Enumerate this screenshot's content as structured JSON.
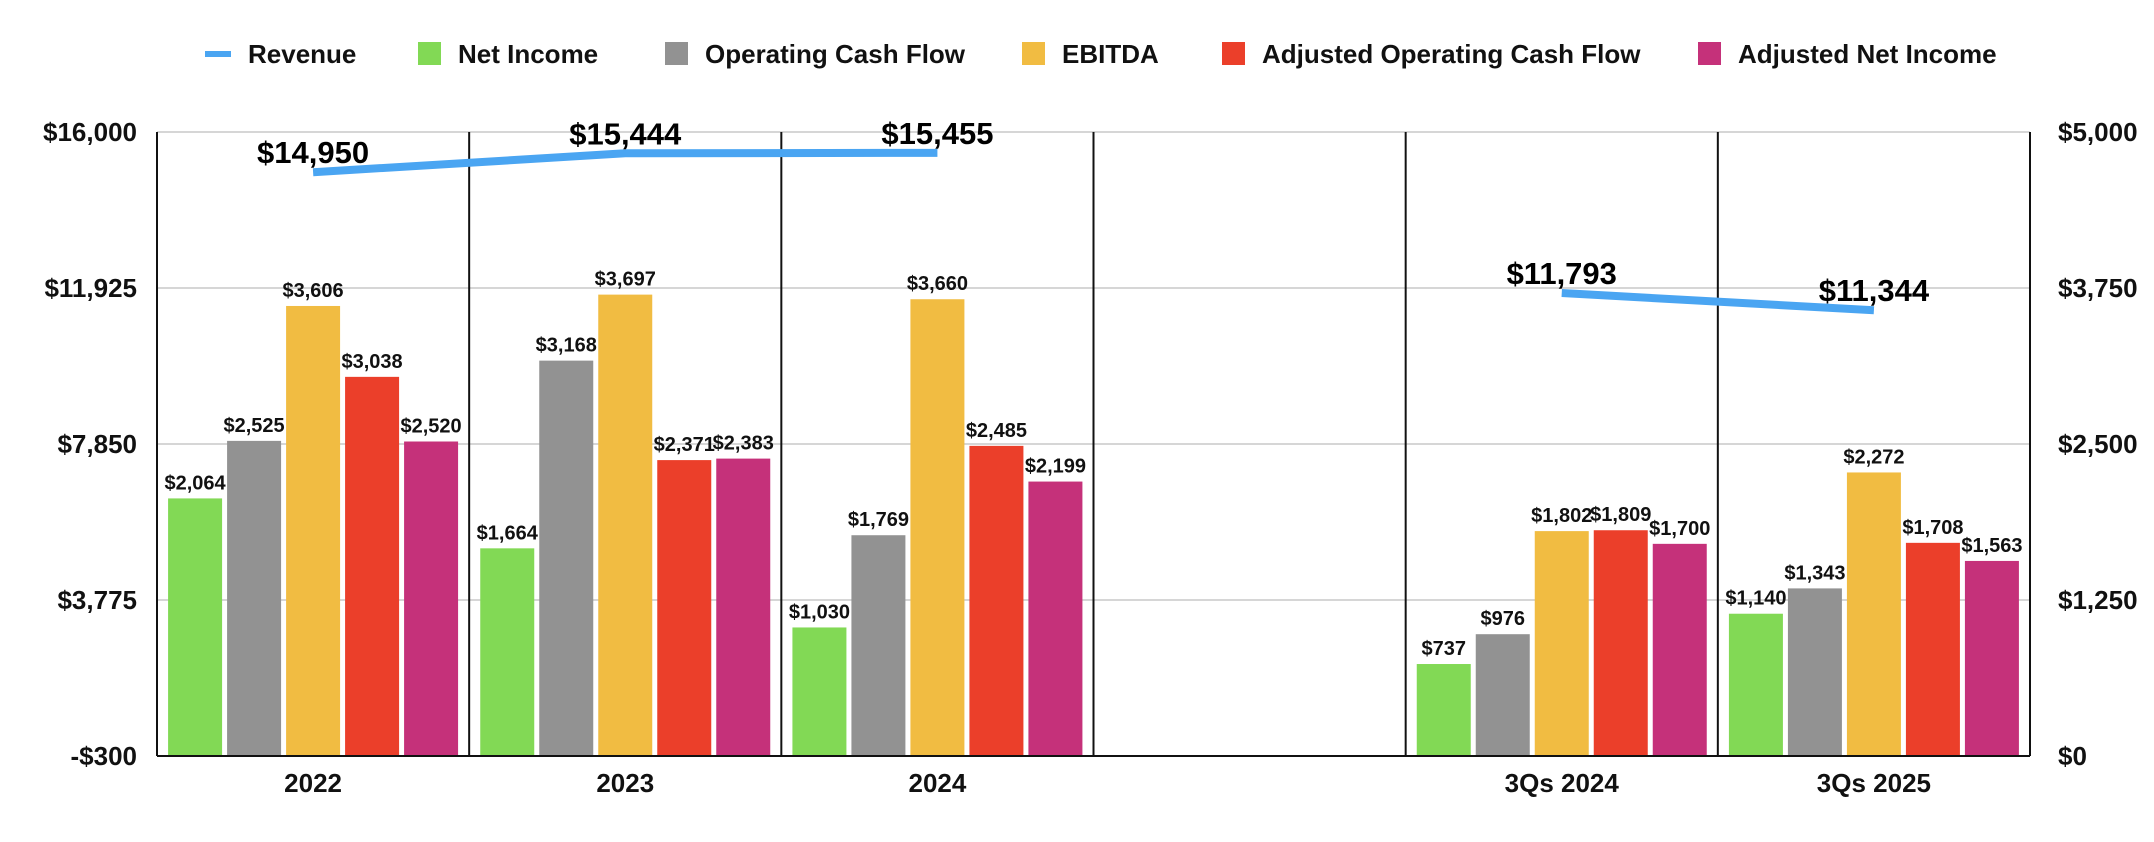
{
  "chart_data": {
    "type": "bar",
    "title": "",
    "categories": [
      "2022",
      "2023",
      "2024",
      "",
      "3Qs 2024",
      "3Qs 2025"
    ],
    "left_axis": {
      "ylim": [
        -300,
        16000
      ],
      "ticks": [
        -300,
        3775,
        7850,
        11925,
        16000
      ],
      "tick_labels": [
        "-$300",
        "$3,775",
        "$7,850",
        "$11,925",
        "$16,000"
      ]
    },
    "right_axis": {
      "ylim": [
        0,
        5000
      ],
      "ticks": [
        0,
        1250,
        2500,
        3750,
        5000
      ],
      "tick_labels": [
        "$0",
        "$1,250",
        "$2,500",
        "$3,750",
        "$5,000"
      ]
    },
    "grid": true,
    "legend_position": "top",
    "series": [
      {
        "name": "Net Income",
        "type": "bar",
        "axis": "right",
        "color": "#82d955",
        "values": [
          2064,
          1664,
          1030,
          null,
          737,
          1140
        ],
        "labels": [
          "$2,064",
          "$1,664",
          "$1,030",
          "",
          "$737",
          "$1,140"
        ]
      },
      {
        "name": "Operating Cash Flow",
        "type": "bar",
        "axis": "right",
        "color": "#929292",
        "values": [
          2525,
          3168,
          1769,
          null,
          976,
          1343
        ],
        "labels": [
          "$2,525",
          "$3,168",
          "$1,769",
          "",
          "$976",
          "$1,343"
        ]
      },
      {
        "name": "EBITDA",
        "type": "bar",
        "axis": "right",
        "color": "#f1bc42",
        "values": [
          3606,
          3697,
          3660,
          null,
          1802,
          2272
        ],
        "labels": [
          "$3,606",
          "$3,697",
          "$3,660",
          "",
          "$1,802",
          "$2,272"
        ]
      },
      {
        "name": "Adjusted Operating Cash Flow",
        "type": "bar",
        "axis": "right",
        "color": "#eb3f2a",
        "values": [
          3038,
          2371,
          2485,
          null,
          1809,
          1708
        ],
        "labels": [
          "$3,038",
          "$2,371",
          "$2,485",
          "",
          "$1,809",
          "$1,708"
        ]
      },
      {
        "name": "Adjusted Net Income",
        "type": "bar",
        "axis": "right",
        "color": "#c5317a",
        "values": [
          2520,
          2383,
          2199,
          null,
          1700,
          1563
        ],
        "labels": [
          "$2,520",
          "$2,383",
          "$2,199",
          "",
          "$1,700",
          "$1,563"
        ]
      }
    ],
    "revenue": {
      "name": "Revenue",
      "type": "line",
      "axis": "left",
      "color": "#4aa5f2",
      "segments": [
        {
          "categories": [
            "2022",
            "2023",
            "2024"
          ],
          "values": [
            14950,
            15444,
            15455
          ],
          "labels": [
            "$14,950",
            "$15,444",
            "$15,455"
          ]
        },
        {
          "categories": [
            "3Qs 2024",
            "3Qs 2025"
          ],
          "values": [
            11793,
            11344
          ],
          "labels": [
            "$11,793",
            "$11,344"
          ]
        }
      ]
    },
    "legend": [
      {
        "name": "Revenue",
        "color": "#4aa5f2",
        "marker": "line"
      },
      {
        "name": "Net Income",
        "color": "#82d955",
        "marker": "square"
      },
      {
        "name": "Operating Cash Flow",
        "color": "#929292",
        "marker": "square"
      },
      {
        "name": "EBITDA",
        "color": "#f1bc42",
        "marker": "square"
      },
      {
        "name": "Adjusted Operating Cash Flow",
        "color": "#eb3f2a",
        "marker": "square"
      },
      {
        "name": "Adjusted Net Income",
        "color": "#c5317a",
        "marker": "square"
      }
    ]
  }
}
